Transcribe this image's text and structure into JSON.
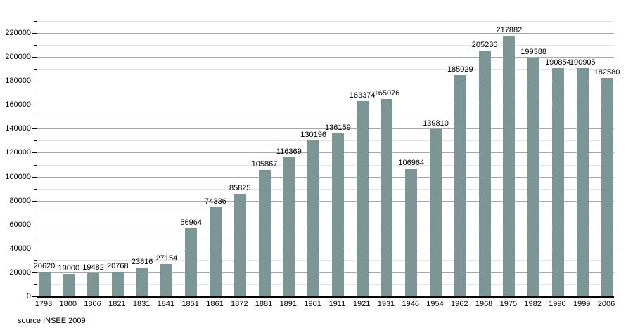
{
  "source_note": "source INSEE 2009",
  "chart_data": {
    "type": "bar",
    "title": "",
    "xlabel": "",
    "ylabel": "",
    "categories": [
      "1793",
      "1800",
      "1806",
      "1821",
      "1831",
      "1841",
      "1851",
      "1861",
      "1872",
      "1881",
      "1891",
      "1901",
      "1911",
      "1921",
      "1931",
      "1946",
      "1954",
      "1962",
      "1968",
      "1975",
      "1982",
      "1990",
      "1999",
      "2006"
    ],
    "values": [
      20620,
      19000,
      19482,
      20768,
      23816,
      27154,
      56964,
      74336,
      85825,
      105867,
      116369,
      130196,
      136159,
      163374,
      165076,
      106964,
      139810,
      185029,
      205236,
      217882,
      199388,
      190854,
      190905,
      182580
    ],
    "ylim": [
      0,
      230000
    ],
    "y_major_step": 20000,
    "y_minor_step": 10000,
    "y_label_max": 220000,
    "grid": "on",
    "legend_position": "none",
    "value_labels": true,
    "colors": {
      "bar": "#7c9696",
      "major_grid": "#a8a8a8",
      "minor_grid": "#e4e4e4",
      "axis": "#000000",
      "text": "#000000"
    }
  }
}
